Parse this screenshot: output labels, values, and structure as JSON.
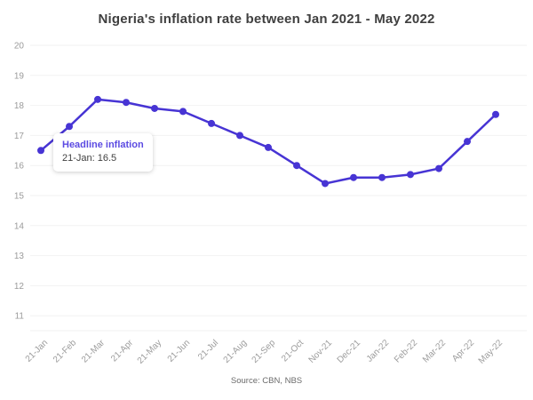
{
  "title": "Nigeria's inflation rate between Jan 2021 - May 2022",
  "source_note": "Source: CBN, NBS",
  "tooltip": {
    "series_label": "Headline inflation",
    "value_label": "21-Jan: 16.5"
  },
  "colors": {
    "line": "#4734d4",
    "marker": "#4734d4",
    "tooltip_title": "#5b4ae2",
    "grid": "#f2f2f2",
    "axis_line": "#f0f0f0",
    "axis_label": "#9b9b9b",
    "title_text": "#3f3f3f"
  },
  "chart_data": {
    "type": "line",
    "title": "Nigeria's inflation rate between Jan 2021 - May 2022",
    "categories": [
      "21-Jan",
      "21-Feb",
      "21-Mar",
      "21-Apr",
      "21-May",
      "21-Jun",
      "21-Jul",
      "21-Aug",
      "21-Sep",
      "21-Oct",
      "Nov-21",
      "Dec-21",
      "Jan-22",
      "Feb-22",
      "Mar-22",
      "Apr-22",
      "May-22"
    ],
    "series": [
      {
        "name": "Headline inflation",
        "values": [
          16.5,
          17.3,
          18.2,
          18.1,
          17.9,
          17.8,
          17.4,
          17.0,
          16.6,
          16.0,
          15.4,
          15.6,
          15.6,
          15.7,
          15.9,
          16.8,
          17.7
        ]
      }
    ],
    "xlabel": "",
    "ylabel": "",
    "ylim": [
      10.5,
      20
    ],
    "y_ticks": [
      20,
      19,
      18,
      17,
      16,
      15,
      14,
      13,
      12,
      11
    ],
    "grid": true,
    "x_tick_rotation": -45,
    "legend_position": "none",
    "annotation": "Tooltip shown on first point: Headline inflation, 21-Jan: 16.5"
  }
}
